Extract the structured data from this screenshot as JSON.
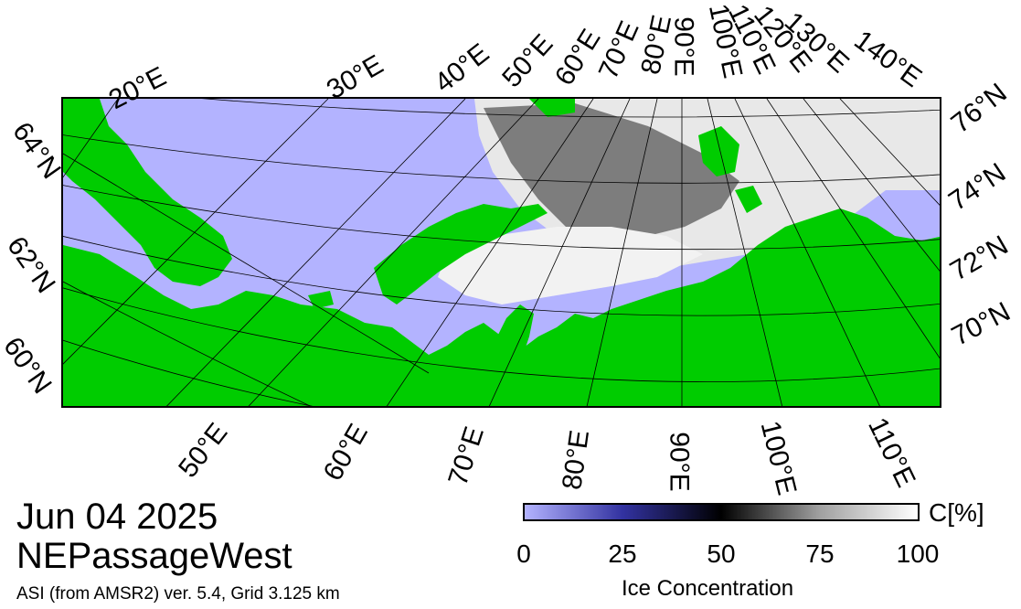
{
  "map": {
    "date": "Jun 04 2025",
    "region": "NEPassageWest",
    "source": "ASI (from AMSR2) ver. 5.4,  Grid 3.125 km",
    "colors": {
      "open_water": "#b3b3ff",
      "land": "#00cc00",
      "ice_high": "#ffffff",
      "ice_mid": "#000000",
      "frame": "#000000"
    },
    "top_lon_labels": [
      "20°E",
      "30°E",
      "40°E",
      "50°E",
      "60°E",
      "70°E",
      "80°E",
      "90°E",
      "100°E",
      "110°E",
      "120°E",
      "130°E",
      "140°E"
    ],
    "bottom_lon_labels": [
      "50°E",
      "60°E",
      "70°E",
      "80°E",
      "90°E",
      "100°E",
      "110°E"
    ],
    "left_lat_labels": [
      "64°N",
      "62°N",
      "60°N"
    ],
    "right_lat_labels": [
      "76°N",
      "74°N",
      "72°N",
      "70°N"
    ]
  },
  "colorbar": {
    "unit": "C[%]",
    "ticks": [
      "0",
      "25",
      "50",
      "75",
      "100"
    ],
    "title": "Ice Concentration"
  }
}
